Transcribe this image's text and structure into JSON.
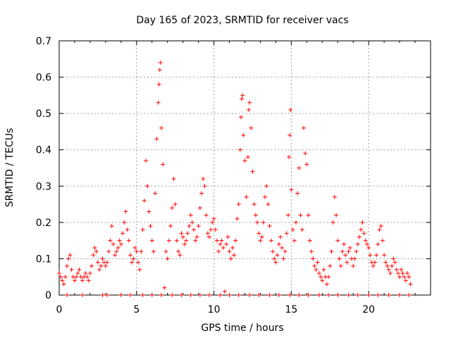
{
  "chart_data": {
    "type": "scatter",
    "title": "Day 165 of 2023, SRMTID for receiver vacs",
    "xlabel": "GPS time / hours",
    "ylabel": "SRMTID / TECUs",
    "xlim": [
      0,
      24
    ],
    "ylim": [
      0,
      0.7
    ],
    "x_ticks": [
      0,
      5,
      10,
      15,
      20
    ],
    "x_tick_labels": [
      "0",
      "5",
      "10",
      "15",
      "20"
    ],
    "y_ticks": [
      0,
      0.1,
      0.2,
      0.3,
      0.4,
      0.5,
      0.6,
      0.7
    ],
    "y_tick_labels": [
      "0",
      "0.1",
      "0.2",
      "0.3",
      "0.4",
      "0.5",
      "0.6",
      "0.7"
    ],
    "grid": true,
    "marker": "plus",
    "series_color": "#ff0000",
    "series": [
      {
        "name": "vacs",
        "points": [
          [
            0.0,
            0.06
          ],
          [
            0.1,
            0.05
          ],
          [
            0.2,
            0.04
          ],
          [
            0.3,
            0.03
          ],
          [
            0.4,
            0.05
          ],
          [
            0.5,
            0.08
          ],
          [
            0.6,
            0.1
          ],
          [
            0.7,
            0.11
          ],
          [
            0.8,
            0.07
          ],
          [
            0.9,
            0.05
          ],
          [
            1.0,
            0.04
          ],
          [
            1.1,
            0.05
          ],
          [
            1.2,
            0.06
          ],
          [
            1.3,
            0.07
          ],
          [
            1.4,
            0.05
          ],
          [
            1.5,
            0.04
          ],
          [
            1.6,
            0.05
          ],
          [
            1.7,
            0.06
          ],
          [
            1.8,
            0.05
          ],
          [
            1.9,
            0.04
          ],
          [
            2.0,
            0.06
          ],
          [
            2.1,
            0.08
          ],
          [
            2.2,
            0.11
          ],
          [
            2.3,
            0.13
          ],
          [
            2.4,
            0.12
          ],
          [
            2.5,
            0.09
          ],
          [
            2.6,
            0.07
          ],
          [
            2.7,
            0.08
          ],
          [
            2.8,
            0.1
          ],
          [
            2.9,
            0.09
          ],
          [
            3.0,
            0.08
          ],
          [
            3.1,
            0.09
          ],
          [
            3.2,
            0.12
          ],
          [
            3.3,
            0.15
          ],
          [
            3.4,
            0.19
          ],
          [
            3.5,
            0.14
          ],
          [
            3.6,
            0.11
          ],
          [
            3.7,
            0.12
          ],
          [
            3.8,
            0.13
          ],
          [
            3.9,
            0.15
          ],
          [
            4.0,
            0.14
          ],
          [
            4.1,
            0.17
          ],
          [
            4.2,
            0.2
          ],
          [
            4.3,
            0.23
          ],
          [
            4.4,
            0.18
          ],
          [
            4.5,
            0.15
          ],
          [
            4.6,
            0.11
          ],
          [
            4.7,
            0.09
          ],
          [
            4.8,
            0.1
          ],
          [
            4.9,
            0.13
          ],
          [
            5.0,
            0.12
          ],
          [
            5.1,
            0.09
          ],
          [
            5.2,
            0.07
          ],
          [
            5.3,
            0.12
          ],
          [
            5.4,
            0.18
          ],
          [
            5.5,
            0.26
          ],
          [
            5.6,
            0.37
          ],
          [
            5.7,
            0.3
          ],
          [
            5.8,
            0.23
          ],
          [
            5.9,
            0.19
          ],
          [
            6.0,
            0.15
          ],
          [
            6.1,
            0.12
          ],
          [
            6.2,
            0.28
          ],
          [
            6.3,
            0.43
          ],
          [
            6.4,
            0.53
          ],
          [
            6.45,
            0.58
          ],
          [
            6.5,
            0.62
          ],
          [
            6.55,
            0.64
          ],
          [
            6.6,
            0.46
          ],
          [
            6.7,
            0.36
          ],
          [
            6.8,
            0.02
          ],
          [
            6.9,
            0.12
          ],
          [
            7.0,
            0.1
          ],
          [
            7.1,
            0.15
          ],
          [
            7.2,
            0.19
          ],
          [
            7.3,
            0.24
          ],
          [
            7.4,
            0.32
          ],
          [
            7.5,
            0.25
          ],
          [
            7.6,
            0.15
          ],
          [
            7.7,
            0.12
          ],
          [
            7.8,
            0.11
          ],
          [
            7.9,
            0.17
          ],
          [
            8.0,
            0.16
          ],
          [
            8.1,
            0.14
          ],
          [
            8.2,
            0.15
          ],
          [
            8.3,
            0.17
          ],
          [
            8.4,
            0.19
          ],
          [
            8.5,
            0.22
          ],
          [
            8.6,
            0.2
          ],
          [
            8.7,
            0.18
          ],
          [
            8.8,
            0.15
          ],
          [
            8.9,
            0.16
          ],
          [
            9.0,
            0.19
          ],
          [
            9.1,
            0.24
          ],
          [
            9.2,
            0.28
          ],
          [
            9.3,
            0.32
          ],
          [
            9.4,
            0.3
          ],
          [
            9.5,
            0.22
          ],
          [
            9.6,
            0.17
          ],
          [
            9.7,
            0.16
          ],
          [
            9.8,
            0.18
          ],
          [
            9.9,
            0.2
          ],
          [
            10.0,
            0.21
          ],
          [
            10.1,
            0.18
          ],
          [
            10.2,
            0.15
          ],
          [
            10.3,
            0.12
          ],
          [
            10.4,
            0.14
          ],
          [
            10.5,
            0.15
          ],
          [
            10.6,
            0.13
          ],
          [
            10.7,
            0.01
          ],
          [
            10.8,
            0.14
          ],
          [
            10.9,
            0.16
          ],
          [
            11.0,
            0.12
          ],
          [
            11.1,
            0.1
          ],
          [
            11.2,
            0.13
          ],
          [
            11.3,
            0.11
          ],
          [
            11.4,
            0.15
          ],
          [
            11.5,
            0.21
          ],
          [
            11.6,
            0.25
          ],
          [
            11.7,
            0.4
          ],
          [
            11.75,
            0.49
          ],
          [
            11.8,
            0.54
          ],
          [
            11.85,
            0.55
          ],
          [
            11.9,
            0.44
          ],
          [
            12.0,
            0.37
          ],
          [
            12.1,
            0.27
          ],
          [
            12.2,
            0.38
          ],
          [
            12.25,
            0.51
          ],
          [
            12.3,
            0.53
          ],
          [
            12.4,
            0.46
          ],
          [
            12.5,
            0.34
          ],
          [
            12.6,
            0.25
          ],
          [
            12.7,
            0.22
          ],
          [
            12.8,
            0.2
          ],
          [
            12.9,
            0.17
          ],
          [
            13.0,
            0.15
          ],
          [
            13.1,
            0.16
          ],
          [
            13.2,
            0.2
          ],
          [
            13.3,
            0.27
          ],
          [
            13.4,
            0.3
          ],
          [
            13.5,
            0.25
          ],
          [
            13.6,
            0.19
          ],
          [
            13.7,
            0.15
          ],
          [
            13.8,
            0.12
          ],
          [
            13.9,
            0.1
          ],
          [
            14.0,
            0.09
          ],
          [
            14.1,
            0.11
          ],
          [
            14.2,
            0.14
          ],
          [
            14.3,
            0.16
          ],
          [
            14.4,
            0.13
          ],
          [
            14.5,
            0.1
          ],
          [
            14.6,
            0.12
          ],
          [
            14.7,
            0.17
          ],
          [
            14.8,
            0.22
          ],
          [
            14.85,
            0.38
          ],
          [
            14.9,
            0.44
          ],
          [
            14.95,
            0.51
          ],
          [
            15.0,
            0.29
          ],
          [
            15.1,
            0.18
          ],
          [
            15.2,
            0.15
          ],
          [
            15.3,
            0.2
          ],
          [
            15.4,
            0.28
          ],
          [
            15.5,
            0.35
          ],
          [
            15.6,
            0.22
          ],
          [
            15.7,
            0.18
          ],
          [
            15.8,
            0.46
          ],
          [
            15.9,
            0.39
          ],
          [
            16.0,
            0.36
          ],
          [
            16.1,
            0.22
          ],
          [
            16.2,
            0.15
          ],
          [
            16.3,
            0.12
          ],
          [
            16.4,
            0.1
          ],
          [
            16.5,
            0.08
          ],
          [
            16.6,
            0.07
          ],
          [
            16.7,
            0.09
          ],
          [
            16.8,
            0.06
          ],
          [
            16.9,
            0.05
          ],
          [
            17.0,
            0.04
          ],
          [
            17.1,
            0.07
          ],
          [
            17.2,
            0.05
          ],
          [
            17.3,
            0.03
          ],
          [
            17.4,
            0.05
          ],
          [
            17.5,
            0.08
          ],
          [
            17.6,
            0.12
          ],
          [
            17.7,
            0.2
          ],
          [
            17.8,
            0.27
          ],
          [
            17.9,
            0.22
          ],
          [
            18.0,
            0.15
          ],
          [
            18.1,
            0.1
          ],
          [
            18.2,
            0.08
          ],
          [
            18.3,
            0.12
          ],
          [
            18.4,
            0.14
          ],
          [
            18.5,
            0.11
          ],
          [
            18.6,
            0.09
          ],
          [
            18.7,
            0.12
          ],
          [
            18.8,
            0.13
          ],
          [
            18.9,
            0.1
          ],
          [
            19.0,
            0.08
          ],
          [
            19.1,
            0.1
          ],
          [
            19.2,
            0.12
          ],
          [
            19.3,
            0.14
          ],
          [
            19.4,
            0.16
          ],
          [
            19.5,
            0.18
          ],
          [
            19.6,
            0.2
          ],
          [
            19.7,
            0.17
          ],
          [
            19.8,
            0.15
          ],
          [
            19.9,
            0.14
          ],
          [
            20.0,
            0.13
          ],
          [
            20.1,
            0.11
          ],
          [
            20.2,
            0.09
          ],
          [
            20.3,
            0.08
          ],
          [
            20.4,
            0.09
          ],
          [
            20.5,
            0.11
          ],
          [
            20.6,
            0.14
          ],
          [
            20.7,
            0.18
          ],
          [
            20.8,
            0.19
          ],
          [
            20.9,
            0.15
          ],
          [
            21.0,
            0.11
          ],
          [
            21.1,
            0.09
          ],
          [
            21.2,
            0.08
          ],
          [
            21.3,
            0.07
          ],
          [
            21.4,
            0.06
          ],
          [
            21.5,
            0.08
          ],
          [
            21.6,
            0.1
          ],
          [
            21.7,
            0.09
          ],
          [
            21.8,
            0.07
          ],
          [
            21.9,
            0.06
          ],
          [
            22.0,
            0.05
          ],
          [
            22.1,
            0.07
          ],
          [
            22.2,
            0.06
          ],
          [
            22.3,
            0.05
          ],
          [
            22.4,
            0.04
          ],
          [
            22.5,
            0.06
          ],
          [
            22.6,
            0.05
          ],
          [
            22.7,
            0.03
          ]
        ]
      }
    ],
    "baseline_points": [
      [
        0.5,
        0.0
      ],
      [
        1.5,
        0.0
      ],
      [
        2.8,
        0.0
      ],
      [
        3.1,
        0.0
      ],
      [
        4.0,
        0.0
      ],
      [
        4.6,
        0.0
      ],
      [
        5.4,
        0.0
      ],
      [
        6.0,
        0.0
      ],
      [
        6.6,
        0.0
      ],
      [
        7.3,
        0.0
      ],
      [
        7.9,
        0.0
      ],
      [
        8.5,
        0.0
      ],
      [
        9.1,
        0.0
      ],
      [
        9.7,
        0.0
      ],
      [
        10.4,
        0.0
      ],
      [
        11.0,
        0.0
      ],
      [
        11.6,
        0.0
      ],
      [
        12.3,
        0.0
      ],
      [
        12.9,
        0.0
      ],
      [
        13.6,
        0.0
      ],
      [
        14.2,
        0.0
      ],
      [
        14.9,
        0.0
      ],
      [
        15.5,
        0.0
      ],
      [
        16.1,
        0.0
      ],
      [
        16.8,
        0.0
      ],
      [
        17.4,
        0.0
      ],
      [
        18.0,
        0.0
      ],
      [
        18.7,
        0.0
      ],
      [
        19.3,
        0.0
      ],
      [
        20.0,
        0.0
      ],
      [
        20.6,
        0.0
      ],
      [
        21.3,
        0.0
      ],
      [
        22.0,
        0.0
      ],
      [
        22.6,
        0.0
      ]
    ]
  }
}
